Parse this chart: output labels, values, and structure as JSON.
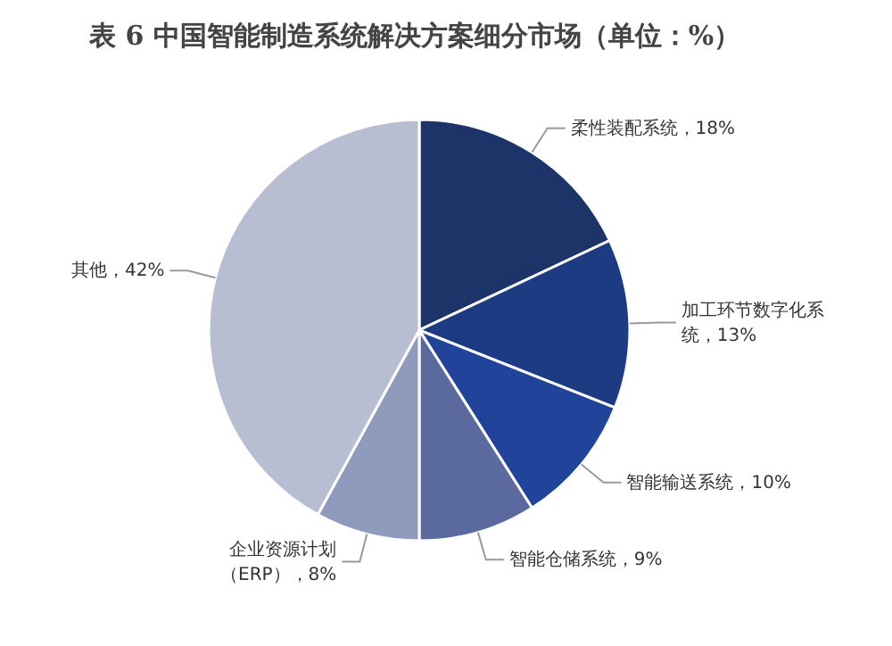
{
  "chart_data": {
    "type": "pie",
    "title": "表 6 中国智能制造系统解决方案细分市场（单位：%）",
    "categories": [
      "柔性装配系统",
      "加工环节数字化系统",
      "智能输送系统",
      "智能仓储系统",
      "企业资源计划（ERP）",
      "其他"
    ],
    "values": [
      18,
      13,
      10,
      9,
      8,
      42
    ],
    "value_labels": [
      "18%",
      "13%",
      "10%",
      "9%",
      "8%",
      "42%"
    ],
    "colors": [
      "#1c3468",
      "#1d3b82",
      "#22439a",
      "#5a6a9e",
      "#8f9abd",
      "#b8bed2"
    ],
    "legend": false
  }
}
